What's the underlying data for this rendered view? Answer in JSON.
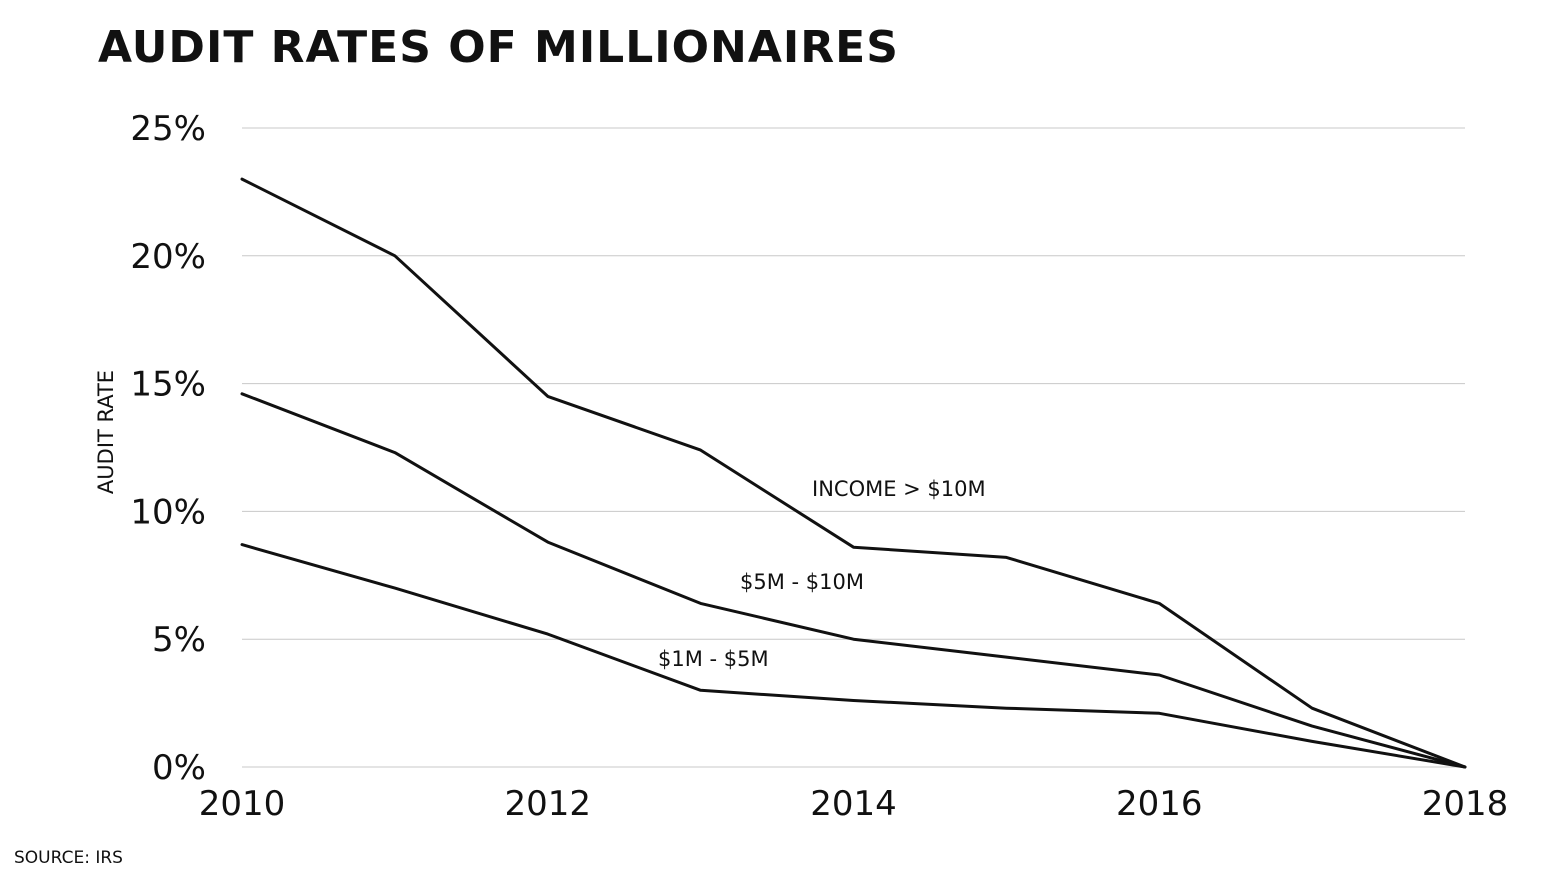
{
  "chart_data": {
    "type": "line",
    "title": "AUDIT RATES OF MILLIONAIRES",
    "ylabel": "AUDIT RATE",
    "xlabel": "",
    "source": "SOURCE: IRS",
    "x_ticks": [
      "2010",
      "2012",
      "2014",
      "2016",
      "2018"
    ],
    "y_ticks": [
      "0%",
      "5%",
      "10%",
      "15%",
      "20%",
      "25%"
    ],
    "xlim": [
      2010,
      2018
    ],
    "ylim": [
      0,
      25
    ],
    "grid": true,
    "line_color": "#111111",
    "grid_color": "#c8c8c8",
    "series": [
      {
        "name": "INCOME > $10M",
        "x": [
          2010,
          2011,
          2012,
          2013,
          2014,
          2015,
          2016,
          2017,
          2018
        ],
        "y": [
          23.0,
          20.0,
          14.5,
          12.4,
          8.6,
          8.2,
          6.4,
          2.3,
          0.0
        ]
      },
      {
        "name": "$5M - $10M",
        "x": [
          2010,
          2011,
          2012,
          2013,
          2014,
          2015,
          2016,
          2017,
          2018
        ],
        "y": [
          14.6,
          12.3,
          8.8,
          6.4,
          5.0,
          4.3,
          3.6,
          1.6,
          0.0
        ]
      },
      {
        "name": "$1M - $5M",
        "x": [
          2010,
          2011,
          2012,
          2013,
          2014,
          2015,
          2016,
          2017,
          2018
        ],
        "y": [
          8.7,
          7.0,
          5.2,
          3.0,
          2.6,
          2.3,
          2.1,
          1.0,
          0.0
        ]
      }
    ]
  }
}
